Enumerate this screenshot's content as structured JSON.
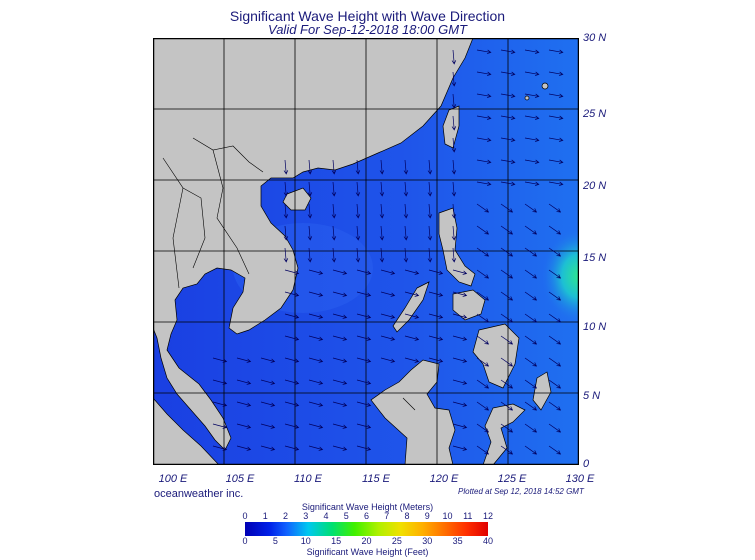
{
  "title": "Significant Wave Height with Wave Direction",
  "subtitle": "Valid For Sep-12-2018 18:00 GMT",
  "lat_labels": [
    "30 N",
    "25 N",
    "20 N",
    "15 N",
    "10 N",
    "5 N",
    "0"
  ],
  "lon_labels": [
    "100 E",
    "105 E",
    "110 E",
    "115 E",
    "120 E",
    "125 E",
    "130 E"
  ],
  "brand": "oceanweather inc.",
  "plotted": "Plotted at Sep 12, 2018 14:52 GMT",
  "scale": {
    "title_meters": "Significant Wave Height (Meters)",
    "title_feet": "Significant Wave Height (Feet)",
    "meters_ticks": [
      "0",
      "1",
      "2",
      "3",
      "4",
      "5",
      "6",
      "7",
      "8",
      "9",
      "10",
      "11",
      "12"
    ],
    "feet_ticks": [
      "0",
      "5",
      "10",
      "15",
      "20",
      "25",
      "30",
      "35",
      "40"
    ]
  },
  "colors": {
    "land": "#c8c8c8",
    "sea_deep": "#1a3be0",
    "sea_mid": "#1f6cf2",
    "sea_high": "#19d3a8",
    "arrow": "#000060"
  }
}
